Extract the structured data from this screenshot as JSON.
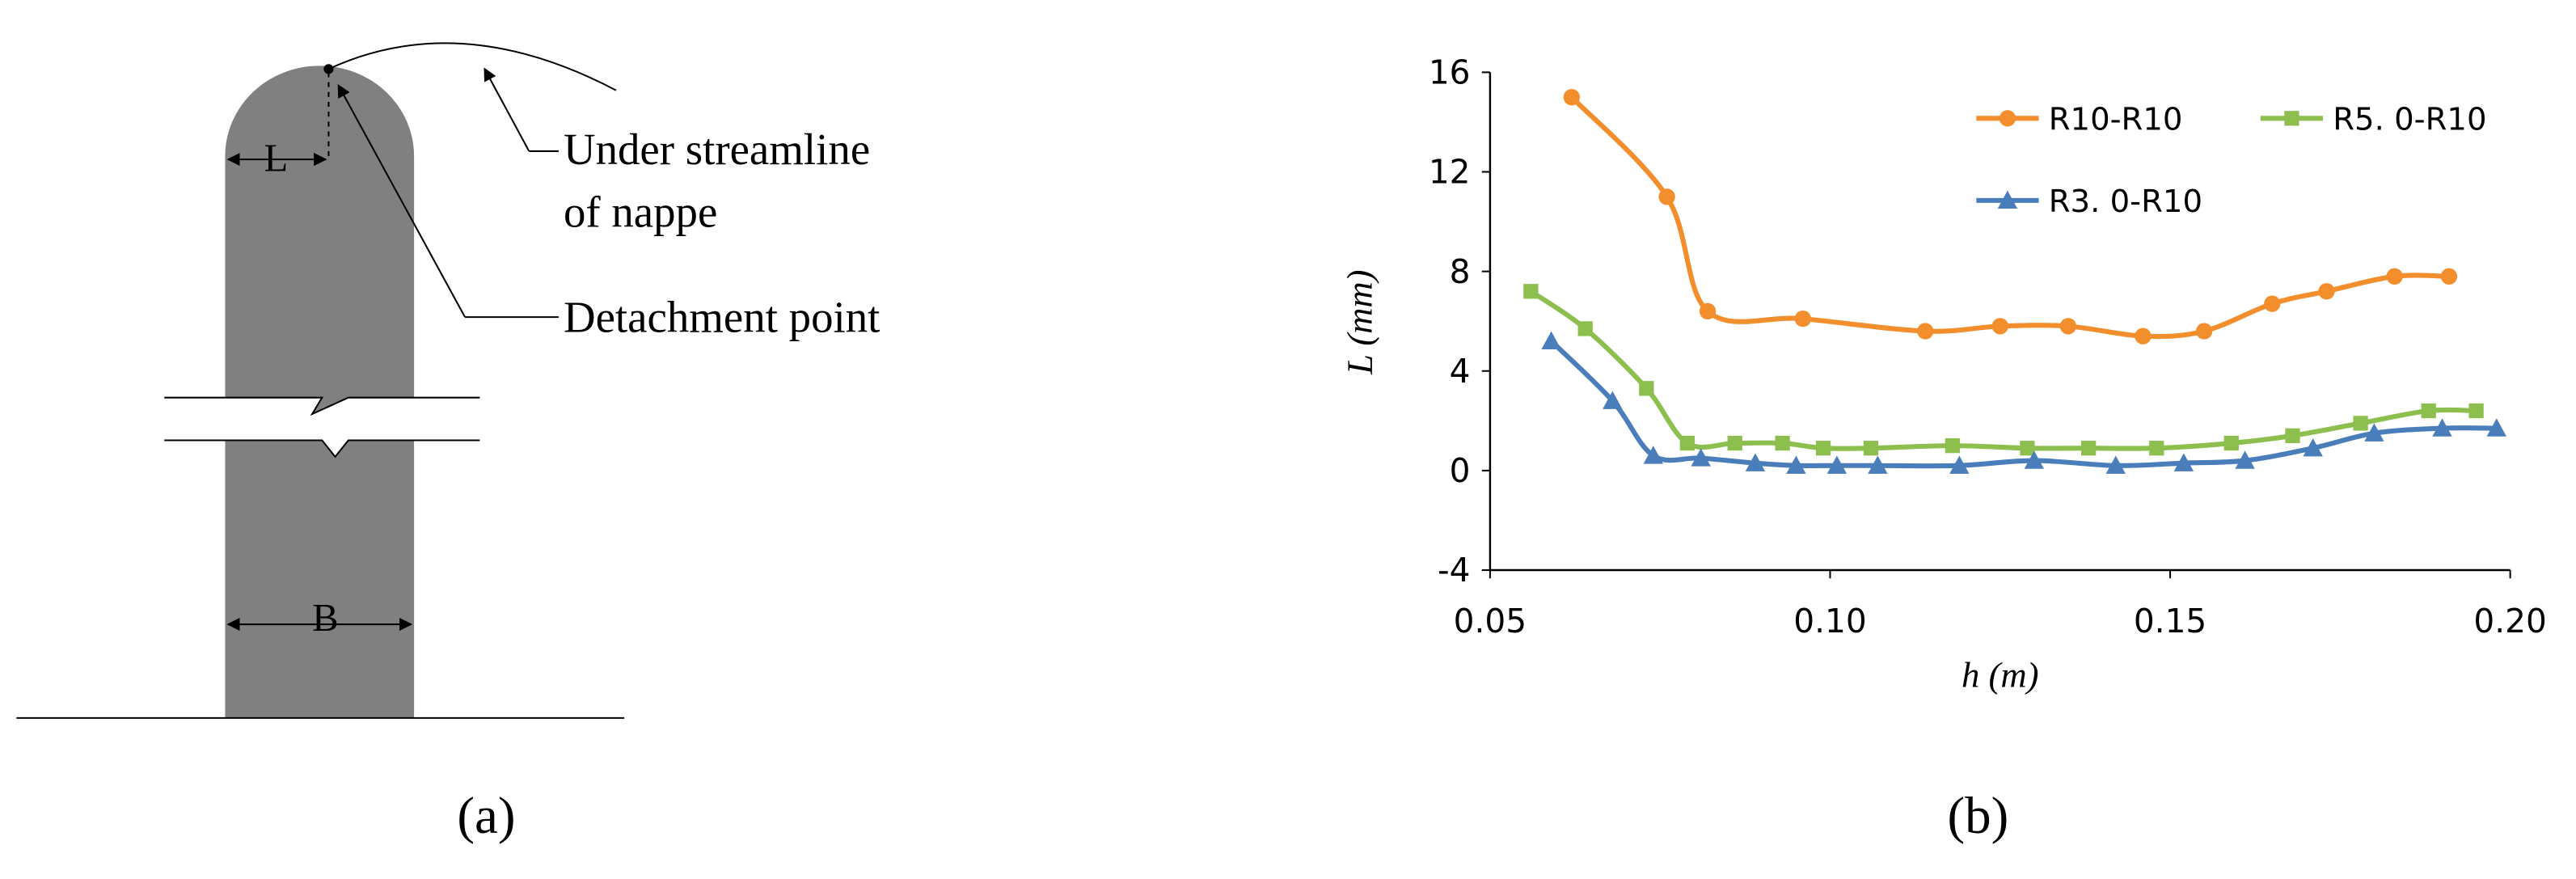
{
  "diagram": {
    "labels": [
      "L",
      "B",
      "Under streamline",
      "of nappe",
      "Detachment point"
    ],
    "caption": "(a)"
  },
  "chart_data": {
    "type": "line",
    "caption": "(b)",
    "x_label": "h (m)",
    "y_label": "L (mm)",
    "xlim": [
      0.05,
      0.2
    ],
    "xticks": [
      0.05,
      {
        "value": 0.1,
        "label": "0.10"
      },
      0.15,
      {
        "value": 0.2,
        "label": "0.20"
      }
    ],
    "ylim": [
      -4,
      16
    ],
    "yticks": [
      -4,
      0,
      4,
      8,
      12,
      16
    ],
    "series": [
      {
        "name": "R10-R10",
        "color": "#f28e2b",
        "marker": "circle",
        "x": [
          0.062,
          0.076,
          0.082,
          0.096,
          0.114,
          0.125,
          0.135,
          0.146,
          0.155,
          0.165,
          0.173,
          0.183,
          0.191
        ],
        "values": [
          15.0,
          11.0,
          6.4,
          6.1,
          5.6,
          5.8,
          5.8,
          5.4,
          5.6,
          6.7,
          7.2,
          7.8,
          7.8
        ]
      },
      {
        "name": "R5. 0-R10",
        "color": "#8cbf4e",
        "marker": "square",
        "x": [
          0.056,
          0.064,
          0.073,
          0.079,
          0.086,
          0.093,
          0.099,
          0.106,
          0.118,
          0.129,
          0.138,
          0.148,
          0.159,
          0.168,
          0.178,
          0.188,
          0.195
        ],
        "values": [
          7.2,
          5.7,
          3.3,
          1.1,
          1.1,
          1.1,
          0.9,
          0.9,
          1.0,
          0.9,
          0.9,
          0.9,
          1.1,
          1.4,
          1.9,
          2.4,
          2.4
        ]
      },
      {
        "name": "R3. 0-R10",
        "color": "#4a7ebb",
        "marker": "triangle",
        "x": [
          0.059,
          0.068,
          0.074,
          0.081,
          0.089,
          0.095,
          0.101,
          0.107,
          0.119,
          0.13,
          0.142,
          0.152,
          0.161,
          0.171,
          0.18,
          0.19,
          0.198
        ],
        "values": [
          5.2,
          2.8,
          0.6,
          0.5,
          0.3,
          0.2,
          0.2,
          0.2,
          0.2,
          0.4,
          0.2,
          0.3,
          0.4,
          0.9,
          1.5,
          1.7,
          1.7
        ]
      }
    ]
  }
}
